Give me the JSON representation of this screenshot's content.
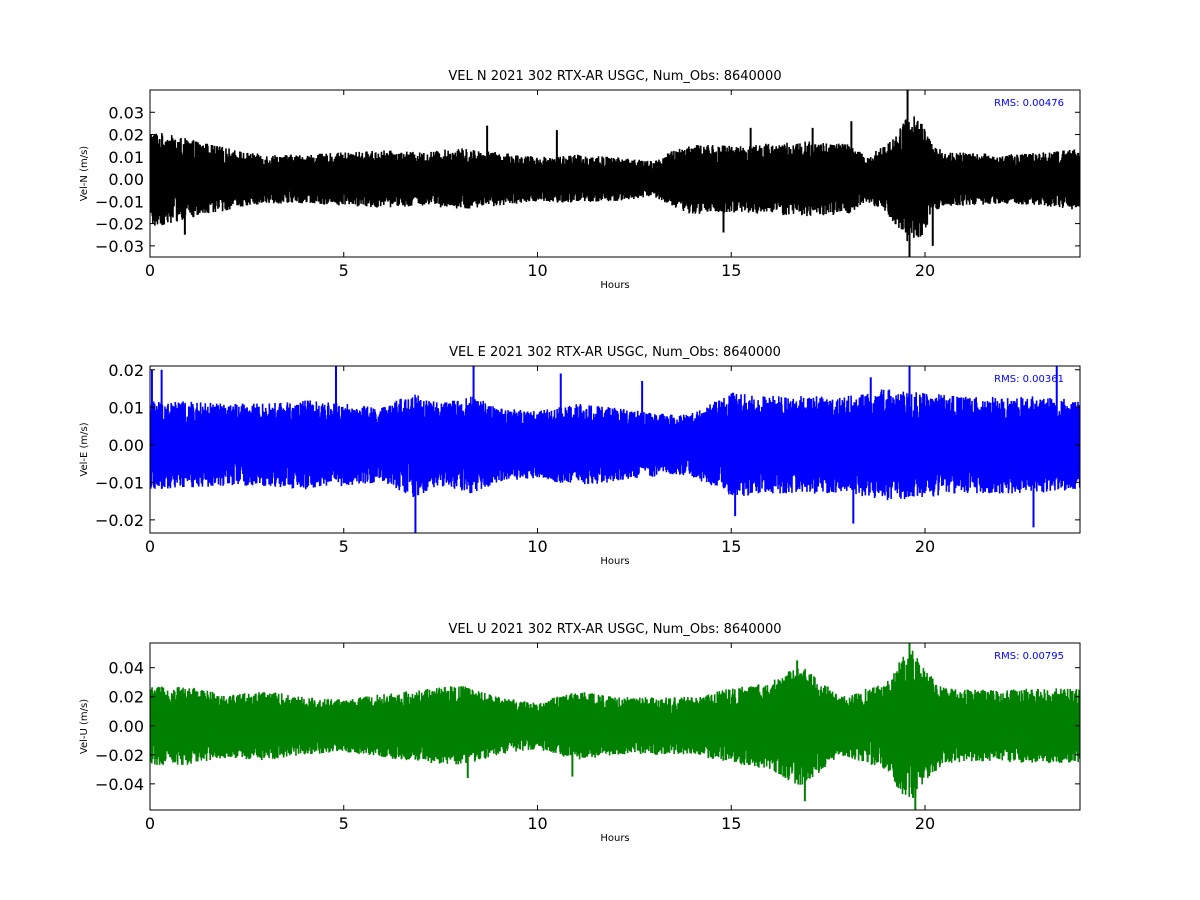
{
  "chart_data": [
    {
      "type": "line",
      "title": "VEL N 2021 302 RTX-AR  USGC, Num_Obs: 8640000",
      "xlabel": "Hours",
      "ylabel": "Vel-N (m/s)",
      "xlim": [
        0,
        24
      ],
      "ylim": [
        -0.035,
        0.04
      ],
      "xticks": [
        0,
        5,
        10,
        15,
        20
      ],
      "yticks": [
        -0.03,
        -0.02,
        -0.01,
        0.0,
        0.01,
        0.02,
        0.03
      ],
      "ytick_labels": [
        "−0.03",
        "−0.02",
        "−0.01",
        "0.00",
        "0.01",
        "0.02",
        "0.03"
      ],
      "xtick_labels": [
        "0",
        "5",
        "10",
        "15",
        "20"
      ],
      "series_color": "#000000",
      "annotation": "RMS:  0.00476",
      "annotation_color": "#0000ff",
      "envelope": {
        "hours": [
          0,
          0.5,
          1,
          1.5,
          2,
          2.5,
          3,
          4,
          5,
          6,
          7,
          8,
          9,
          10,
          11,
          12,
          13,
          13.5,
          14,
          15,
          16,
          17,
          18,
          18.5,
          19,
          19.3,
          19.6,
          19.9,
          20.2,
          20.5,
          21,
          22,
          23,
          24
        ],
        "amplitude": [
          0.022,
          0.02,
          0.018,
          0.016,
          0.014,
          0.012,
          0.011,
          0.011,
          0.012,
          0.013,
          0.012,
          0.014,
          0.012,
          0.01,
          0.011,
          0.01,
          0.008,
          0.013,
          0.016,
          0.015,
          0.016,
          0.017,
          0.016,
          0.01,
          0.016,
          0.022,
          0.03,
          0.026,
          0.016,
          0.012,
          0.012,
          0.011,
          0.012,
          0.014
        ]
      },
      "spikes": [
        {
          "hour": 0.9,
          "value": -0.025
        },
        {
          "hour": 8.7,
          "value": 0.024
        },
        {
          "hour": 10.5,
          "value": 0.022
        },
        {
          "hour": 14.8,
          "value": -0.024
        },
        {
          "hour": 15.5,
          "value": 0.023
        },
        {
          "hour": 17.1,
          "value": 0.023
        },
        {
          "hour": 18.1,
          "value": 0.026
        },
        {
          "hour": 19.55,
          "value": 0.04
        },
        {
          "hour": 19.6,
          "value": -0.035
        },
        {
          "hour": 20.2,
          "value": -0.03
        }
      ]
    },
    {
      "type": "line",
      "title": "VEL E 2021 302 RTX-AR  USGC, Num_Obs: 8640000",
      "xlabel": "Hours",
      "ylabel": "Vel-E (m/s)",
      "xlim": [
        0,
        24
      ],
      "ylim": [
        -0.0235,
        0.021
      ],
      "xticks": [
        0,
        5,
        10,
        15,
        20
      ],
      "yticks": [
        -0.02,
        -0.01,
        0.0,
        0.01,
        0.02
      ],
      "ytick_labels": [
        "−0.02",
        "−0.01",
        "0.00",
        "0.01",
        "0.02"
      ],
      "xtick_labels": [
        "0",
        "5",
        "10",
        "15",
        "20"
      ],
      "series_color": "#0000ff",
      "annotation": "RMS:  0.00361",
      "annotation_color": "#0000ff",
      "envelope": {
        "hours": [
          0,
          1,
          2,
          3,
          4,
          5,
          6,
          6.8,
          7.5,
          8.3,
          9,
          10,
          11,
          12,
          13,
          13.5,
          14,
          15,
          16,
          17,
          18,
          19,
          20,
          21,
          22,
          23,
          24
        ],
        "amplitude": [
          0.012,
          0.0115,
          0.011,
          0.011,
          0.012,
          0.011,
          0.01,
          0.014,
          0.011,
          0.013,
          0.01,
          0.009,
          0.011,
          0.01,
          0.0085,
          0.008,
          0.0085,
          0.014,
          0.013,
          0.013,
          0.013,
          0.015,
          0.014,
          0.013,
          0.013,
          0.013,
          0.012
        ]
      },
      "spikes": [
        {
          "hour": 0.05,
          "value": 0.02
        },
        {
          "hour": 0.3,
          "value": 0.02
        },
        {
          "hour": 4.8,
          "value": 0.021
        },
        {
          "hour": 6.85,
          "value": -0.0235
        },
        {
          "hour": 8.35,
          "value": 0.021
        },
        {
          "hour": 10.6,
          "value": 0.019
        },
        {
          "hour": 12.7,
          "value": 0.017
        },
        {
          "hour": 15.1,
          "value": -0.019
        },
        {
          "hour": 18.15,
          "value": -0.021
        },
        {
          "hour": 18.6,
          "value": 0.018
        },
        {
          "hour": 19.6,
          "value": 0.021
        },
        {
          "hour": 22.8,
          "value": -0.022
        },
        {
          "hour": 23.4,
          "value": 0.021
        }
      ]
    },
    {
      "type": "line",
      "title": "VEL U 2021 302 RTX-AR  USGC, Num_Obs: 8640000",
      "xlabel": "Hours",
      "ylabel": "Vel-U (m/s)",
      "xlim": [
        0,
        24
      ],
      "ylim": [
        -0.058,
        0.057
      ],
      "xticks": [
        0,
        5,
        10,
        15,
        20
      ],
      "yticks": [
        -0.04,
        -0.02,
        0.0,
        0.02,
        0.04
      ],
      "ytick_labels": [
        "−0.04",
        "−0.02",
        "0.00",
        "0.02",
        "0.04"
      ],
      "xtick_labels": [
        "0",
        "5",
        "10",
        "15",
        "20"
      ],
      "series_color": "#008000",
      "annotation": "RMS:  0.00795",
      "annotation_color": "#0000ff",
      "envelope": {
        "hours": [
          0,
          1,
          2,
          3,
          4,
          5,
          6,
          7,
          8,
          9,
          10,
          11,
          12,
          13,
          14,
          15,
          16,
          16.5,
          16.8,
          17.2,
          17.8,
          18.5,
          19,
          19.4,
          19.7,
          20,
          20.5,
          21,
          22,
          23,
          24
        ],
        "amplitude": [
          0.027,
          0.027,
          0.022,
          0.024,
          0.02,
          0.018,
          0.022,
          0.025,
          0.028,
          0.02,
          0.016,
          0.024,
          0.02,
          0.02,
          0.02,
          0.026,
          0.03,
          0.038,
          0.042,
          0.034,
          0.02,
          0.026,
          0.03,
          0.048,
          0.052,
          0.038,
          0.026,
          0.025,
          0.025,
          0.026,
          0.026
        ]
      },
      "spikes": [
        {
          "hour": 16.7,
          "value": 0.045
        },
        {
          "hour": 16.9,
          "value": -0.052
        },
        {
          "hour": 19.6,
          "value": 0.057
        },
        {
          "hour": 19.75,
          "value": -0.058
        },
        {
          "hour": 8.2,
          "value": -0.036
        },
        {
          "hour": 10.9,
          "value": -0.035
        }
      ]
    }
  ]
}
